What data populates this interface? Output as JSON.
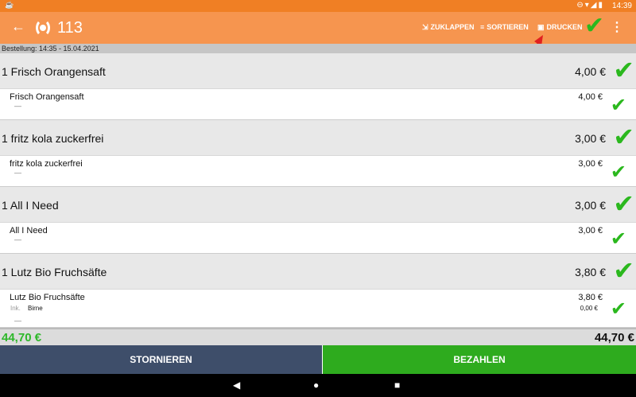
{
  "status": {
    "time": "14:39"
  },
  "toolbar": {
    "title": "113",
    "actions": [
      {
        "label": "ZUKLAPPEN",
        "icon": "collapse-icon"
      },
      {
        "label": "SORTIEREN",
        "icon": "sort-icon"
      },
      {
        "label": "DRUCKEN",
        "icon": "print-icon"
      }
    ]
  },
  "order_info": "Bestellung: 14:35 - 15.04.2021",
  "groups": [
    {
      "title": "1 Frisch Orangensaft",
      "price": "4,00 €",
      "item": "Frisch Orangensaft",
      "item_price": "4,00 €",
      "dash": "—"
    },
    {
      "title": "1 fritz kola zuckerfrei",
      "price": "3,00 €",
      "item": "fritz kola zuckerfrei",
      "item_price": "3,00 €",
      "dash": "—"
    },
    {
      "title": "1 All I Need",
      "price": "3,00 €",
      "item": "All I Need",
      "item_price": "3,00 €",
      "dash": "—"
    },
    {
      "title": "1 Lutz Bio Fruchsäfte",
      "price": "3,80 €",
      "item": "Lutz Bio Fruchsäfte",
      "item_price": "3,80 €",
      "extra_label": "Ink.",
      "extra_value": "Birne",
      "extra_price": "0,00 €",
      "dash": "—"
    }
  ],
  "total_left": "44,70 €",
  "total_right": "44,70 €",
  "buttons": {
    "cancel": "STORNIEREN",
    "pay": "BEZAHLEN"
  },
  "colors": {
    "accent": "#f6954f",
    "check": "#2bb81e",
    "cancel": "#3e4e6a",
    "pay": "#2eab1e"
  }
}
